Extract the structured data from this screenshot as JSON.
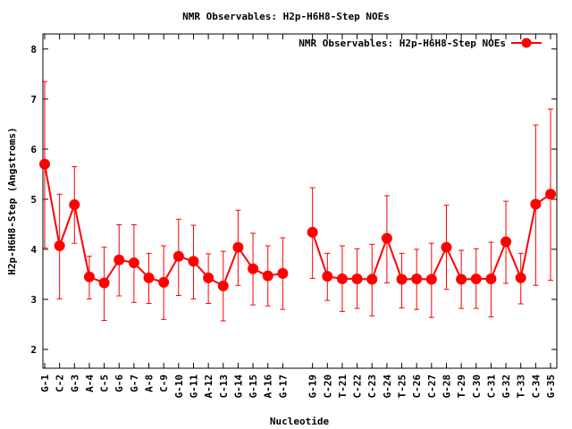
{
  "chart_data": {
    "type": "line",
    "title": "NMR Observables: H2p-H6H8-Step NOEs",
    "xlabel": "Nucleotide",
    "ylabel": "H2p-H6H8-Step (Angstroms)",
    "ylim": [
      1.625,
      8.3
    ],
    "xlim": [
      0.88,
      35.42
    ],
    "yticks": [
      2,
      3,
      4,
      5,
      6,
      7,
      8
    ],
    "legend": {
      "label": "NMR Observables: H2p-H6H8-Step NOEs",
      "position": "top-right"
    },
    "grid": false,
    "series": [
      {
        "name": "NMR Observables: H2p-H6H8-Step NOEs",
        "color": "#ff0000",
        "points": [
          {
            "x": 1,
            "label": "G-1",
            "y": 5.7,
            "err_hi": 7.35,
            "err_lo": 4.03
          },
          {
            "x": 2,
            "label": "C-2",
            "y": 4.07,
            "err_hi": 5.1,
            "err_lo": 3.01
          },
          {
            "x": 3,
            "label": "G-3",
            "y": 4.89,
            "err_hi": 5.65,
            "err_lo": 4.12
          },
          {
            "x": 4,
            "label": "A-4",
            "y": 3.45,
            "err_hi": 3.86,
            "err_lo": 3.01
          },
          {
            "x": 5,
            "label": "C-5",
            "y": 3.33,
            "err_hi": 4.04,
            "err_lo": 2.58
          },
          {
            "x": 6,
            "label": "G-6",
            "y": 3.79,
            "err_hi": 4.49,
            "err_lo": 3.07
          },
          {
            "x": 7,
            "label": "G-7",
            "y": 3.73,
            "err_hi": 4.49,
            "err_lo": 2.94
          },
          {
            "x": 8,
            "label": "A-8",
            "y": 3.43,
            "err_hi": 3.92,
            "err_lo": 2.92
          },
          {
            "x": 9,
            "label": "C-9",
            "y": 3.34,
            "err_hi": 4.07,
            "err_lo": 2.6
          },
          {
            "x": 10,
            "label": "G-10",
            "y": 3.86,
            "err_hi": 4.6,
            "err_lo": 3.08
          },
          {
            "x": 11,
            "label": "G-11",
            "y": 3.76,
            "err_hi": 4.48,
            "err_lo": 3.01
          },
          {
            "x": 12,
            "label": "A-12",
            "y": 3.43,
            "err_hi": 3.91,
            "err_lo": 2.92
          },
          {
            "x": 13,
            "label": "C-13",
            "y": 3.27,
            "err_hi": 3.96,
            "err_lo": 2.57
          },
          {
            "x": 14,
            "label": "G-14",
            "y": 4.04,
            "err_hi": 4.78,
            "err_lo": 3.28
          },
          {
            "x": 15,
            "label": "G-15",
            "y": 3.61,
            "err_hi": 4.32,
            "err_lo": 2.89
          },
          {
            "x": 16,
            "label": "A-16",
            "y": 3.47,
            "err_hi": 4.07,
            "err_lo": 2.87
          },
          {
            "x": 17,
            "label": "G-17",
            "y": 3.52,
            "err_hi": 4.23,
            "err_lo": 2.8
          },
          {
            "x": 19,
            "label": "G-19",
            "y": 4.34,
            "err_hi": 5.23,
            "err_lo": 3.42
          },
          {
            "x": 20,
            "label": "C-20",
            "y": 3.46,
            "err_hi": 3.92,
            "err_lo": 2.98
          },
          {
            "x": 21,
            "label": "T-21",
            "y": 3.41,
            "err_hi": 4.07,
            "err_lo": 2.76
          },
          {
            "x": 22,
            "label": "C-22",
            "y": 3.41,
            "err_hi": 4.01,
            "err_lo": 2.82
          },
          {
            "x": 23,
            "label": "C-23",
            "y": 3.4,
            "err_hi": 4.1,
            "err_lo": 2.67
          },
          {
            "x": 24,
            "label": "G-24",
            "y": 4.22,
            "err_hi": 5.07,
            "err_lo": 3.33
          },
          {
            "x": 25,
            "label": "T-25",
            "y": 3.4,
            "err_hi": 3.92,
            "err_lo": 2.83
          },
          {
            "x": 26,
            "label": "C-26",
            "y": 3.41,
            "err_hi": 4.0,
            "err_lo": 2.8
          },
          {
            "x": 27,
            "label": "C-27",
            "y": 3.4,
            "err_hi": 4.12,
            "err_lo": 2.64
          },
          {
            "x": 28,
            "label": "G-28",
            "y": 4.04,
            "err_hi": 4.88,
            "err_lo": 3.2
          },
          {
            "x": 29,
            "label": "T-29",
            "y": 3.4,
            "err_hi": 3.98,
            "err_lo": 2.82
          },
          {
            "x": 30,
            "label": "C-30",
            "y": 3.41,
            "err_hi": 4.01,
            "err_lo": 2.82
          },
          {
            "x": 31,
            "label": "C-31",
            "y": 3.41,
            "err_hi": 4.14,
            "err_lo": 2.65
          },
          {
            "x": 32,
            "label": "G-32",
            "y": 4.15,
            "err_hi": 4.96,
            "err_lo": 3.32
          },
          {
            "x": 33,
            "label": "T-33",
            "y": 3.43,
            "err_hi": 3.92,
            "err_lo": 2.91
          },
          {
            "x": 34,
            "label": "C-34",
            "y": 4.9,
            "err_hi": 6.48,
            "err_lo": 3.28
          },
          {
            "x": 35,
            "label": "G-35",
            "y": 5.1,
            "err_hi": 6.8,
            "err_lo": 3.38
          }
        ]
      }
    ]
  }
}
